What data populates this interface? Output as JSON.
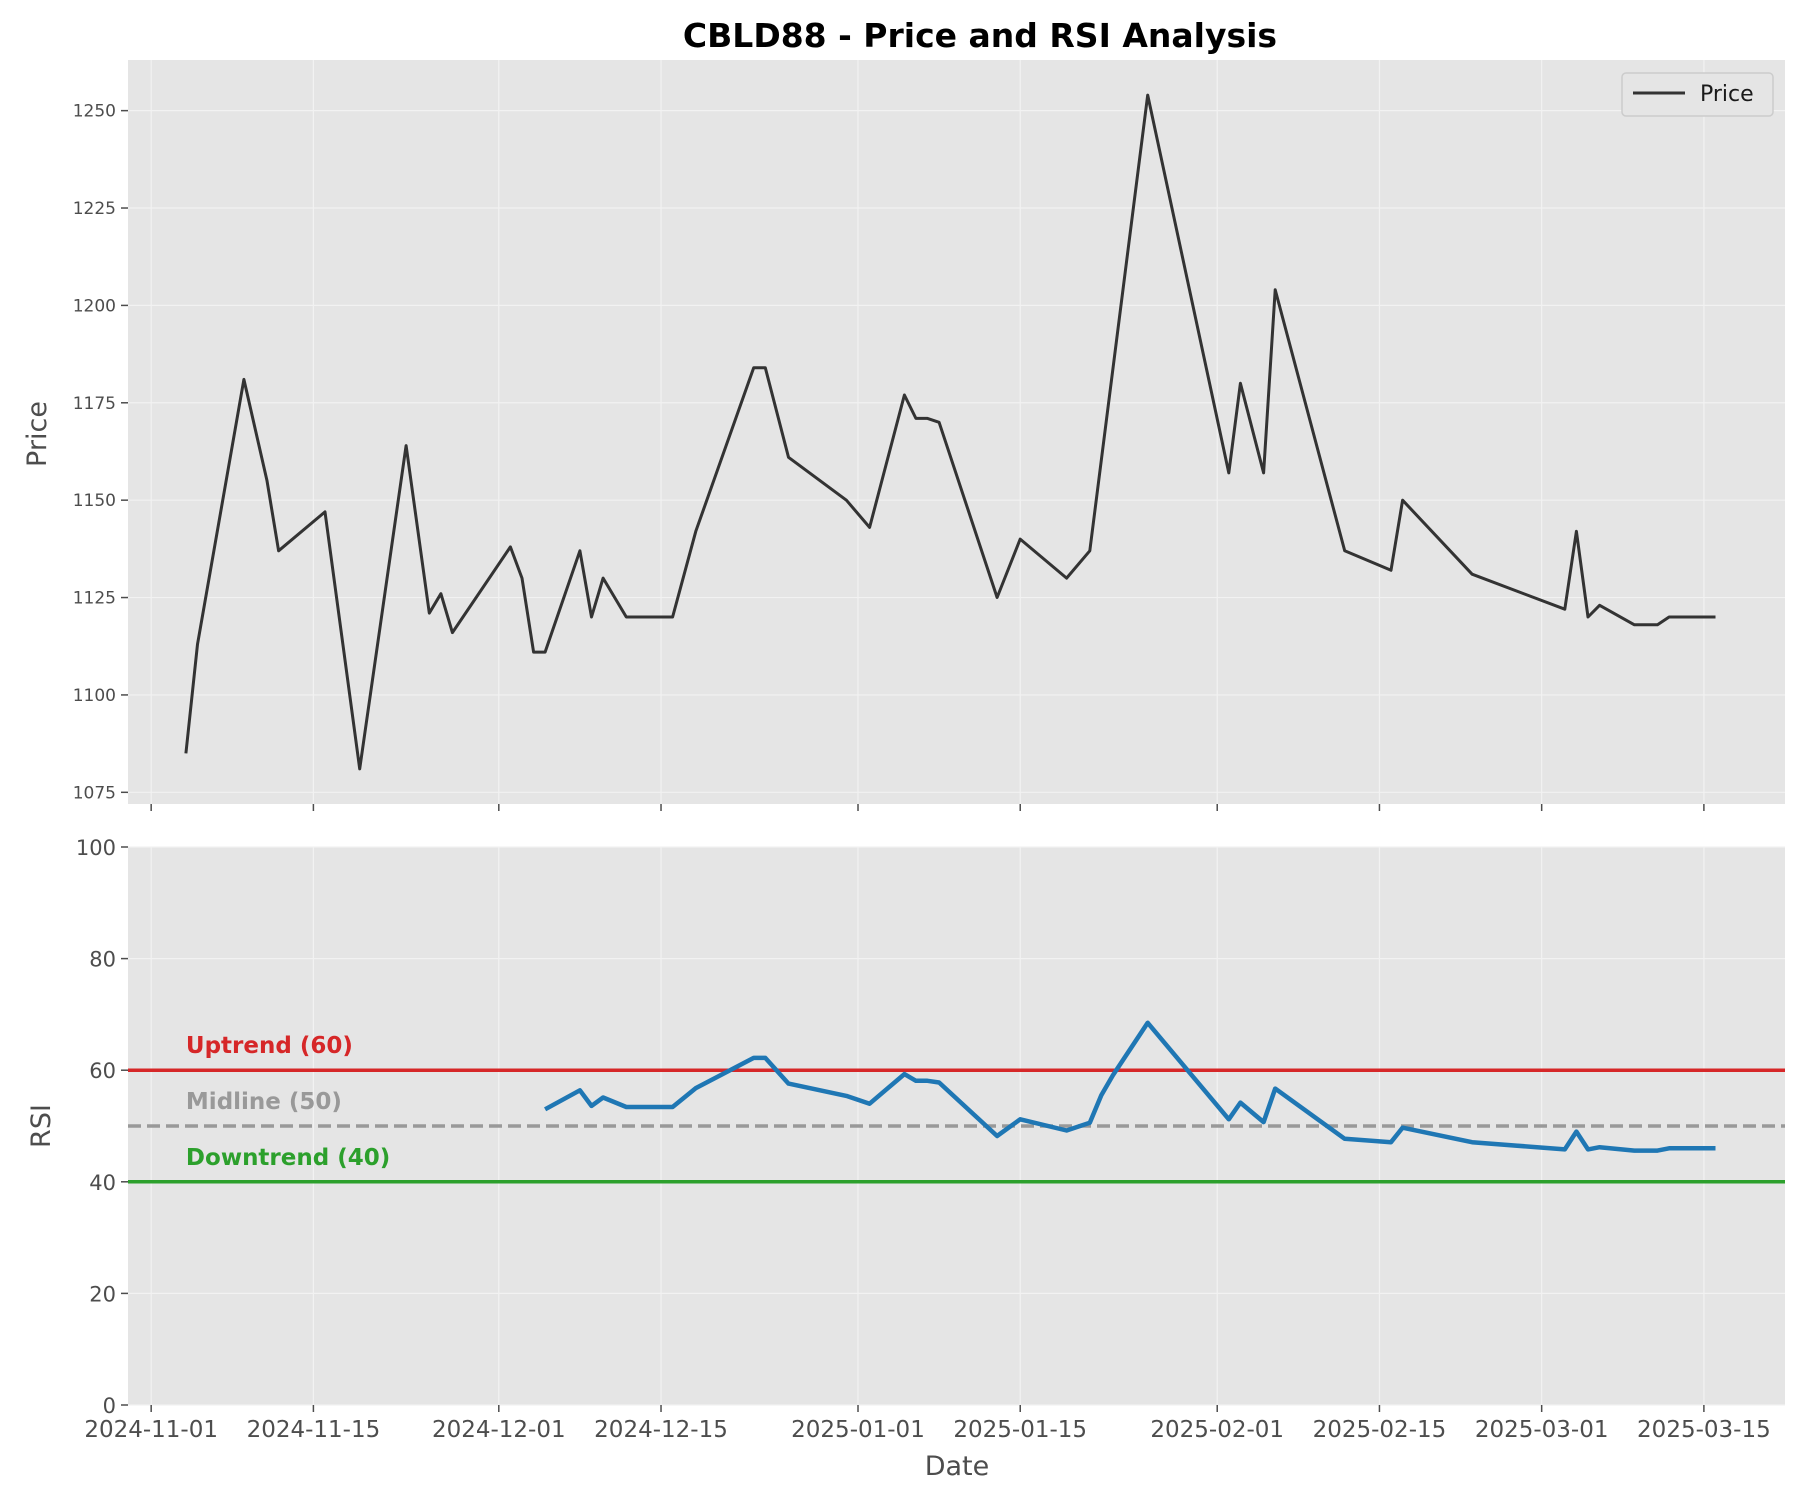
{
  "chart_data": [
    {
      "type": "line",
      "title": "CBLD88 - Price and RSI Analysis",
      "ylabel": "Price",
      "ylim": [
        1072,
        1263
      ],
      "yticks": [
        1075,
        1100,
        1125,
        1150,
        1175,
        1200,
        1225,
        1250
      ],
      "xlim": [
        "2024-10-30",
        "2025-03-22"
      ],
      "grid": true,
      "legend": {
        "placement": "top-right",
        "entries": [
          "Price"
        ]
      },
      "series": [
        {
          "name": "Price",
          "color": "#333333",
          "x": [
            "2024-11-04",
            "2024-11-05",
            "2024-11-09",
            "2024-11-11",
            "2024-11-12",
            "2024-11-16",
            "2024-11-19",
            "2024-11-23",
            "2024-11-25",
            "2024-11-26",
            "2024-11-27",
            "2024-12-02",
            "2024-12-03",
            "2024-12-04",
            "2024-12-05",
            "2024-12-08",
            "2024-12-09",
            "2024-12-10",
            "2024-12-12",
            "2024-12-16",
            "2024-12-18",
            "2024-12-23",
            "2024-12-24",
            "2024-12-26",
            "2024-12-31",
            "2025-01-02",
            "2025-01-05",
            "2025-01-06",
            "2025-01-07",
            "2025-01-08",
            "2025-01-13",
            "2025-01-15",
            "2025-01-19",
            "2025-01-21",
            "2025-01-26",
            "2025-02-02",
            "2025-02-03",
            "2025-02-05",
            "2025-02-06",
            "2025-02-12",
            "2025-02-16",
            "2025-02-17",
            "2025-02-23",
            "2025-03-03",
            "2025-03-04",
            "2025-03-05",
            "2025-03-06",
            "2025-03-09",
            "2025-03-11",
            "2025-03-12",
            "2025-03-16"
          ],
          "values": [
            1085,
            1113,
            1181,
            1155,
            1137,
            1147,
            1081,
            1164,
            1121,
            1126,
            1116,
            1138,
            1130,
            1111,
            1111,
            1137,
            1120,
            1130,
            1120,
            1120,
            1142,
            1184,
            1184,
            1161,
            1150,
            1143,
            1177,
            1171,
            1171,
            1170,
            1125,
            1140,
            1130,
            1137,
            1254,
            1157,
            1180,
            1157,
            1204,
            1137,
            1132,
            1150,
            1131,
            1122,
            1142,
            1120,
            1123,
            1118,
            1118,
            1120,
            1120
          ]
        }
      ]
    },
    {
      "type": "line",
      "ylabel": "RSI",
      "xlabel": "Date",
      "ylim": [
        0,
        100
      ],
      "yticks": [
        0,
        20,
        40,
        60,
        80,
        100
      ],
      "xlim": [
        "2024-10-30",
        "2025-03-22"
      ],
      "xticks": [
        "2024-11-01",
        "2024-11-15",
        "2024-12-01",
        "2024-12-15",
        "2025-01-01",
        "2025-01-15",
        "2025-02-01",
        "2025-02-15",
        "2025-03-01",
        "2025-03-15"
      ],
      "grid": true,
      "series": [
        {
          "color": "#1f77b4",
          "x": [
            "2024-12-05",
            "2024-12-08",
            "2024-12-09",
            "2024-12-10",
            "2024-12-12",
            "2024-12-16",
            "2024-12-18",
            "2024-12-23",
            "2024-12-24",
            "2024-12-26",
            "2024-12-31",
            "2025-01-02",
            "2025-01-05",
            "2025-01-06",
            "2025-01-07",
            "2025-01-08",
            "2025-01-13",
            "2025-01-15",
            "2025-01-19",
            "2025-01-21",
            "2025-01-22",
            "2025-01-23",
            "2025-01-26",
            "2025-02-02",
            "2025-02-03",
            "2025-02-05",
            "2025-02-06",
            "2025-02-12",
            "2025-02-16",
            "2025-02-17",
            "2025-02-23",
            "2025-03-03",
            "2025-03-04",
            "2025-03-05",
            "2025-03-06",
            "2025-03-09",
            "2025-03-11",
            "2025-03-12",
            "2025-03-16"
          ],
          "values": [
            53,
            56.4,
            53.6,
            55.1,
            53.4,
            53.4,
            56.8,
            62.2,
            62.2,
            57.6,
            55.4,
            54,
            59.3,
            58.1,
            58.1,
            57.8,
            48.2,
            51.2,
            49.2,
            50.6,
            55.5,
            59.1,
            68.5,
            51.2,
            54.2,
            50.7,
            56.7,
            47.7,
            47.1,
            49.7,
            47.1,
            45.8,
            49,
            45.8,
            46.2,
            45.6,
            45.6,
            46,
            46
          ]
        }
      ],
      "reference_lines": [
        {
          "value": 60,
          "label": "Uptrend (60)",
          "color": "#d62728",
          "style": "solid"
        },
        {
          "value": 50,
          "label": "Midline (50)",
          "color": "#999999",
          "style": "dashed"
        },
        {
          "value": 40,
          "label": "Downtrend (40)",
          "color": "#2ca02c",
          "style": "solid"
        }
      ]
    }
  ]
}
